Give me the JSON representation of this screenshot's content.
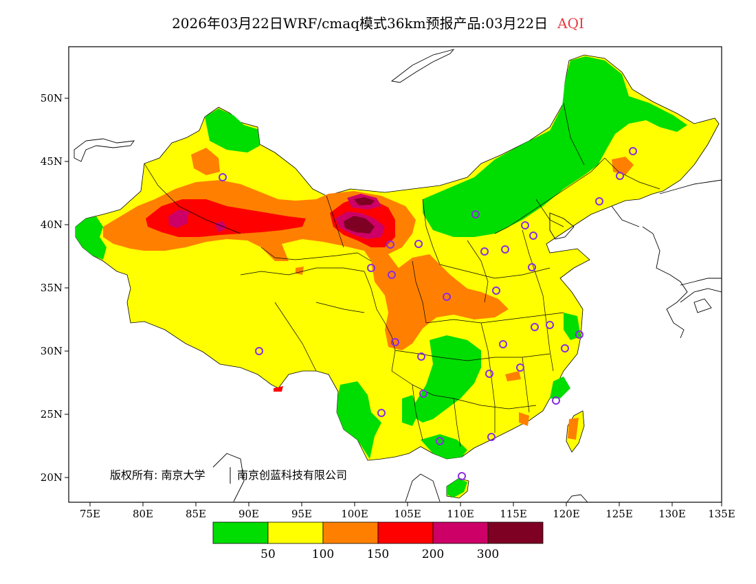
{
  "title": {
    "main": "2026年03月22日WRF/cmaq模式36km预报产品:03月22日",
    "variable": "AQI"
  },
  "axes": {
    "lon_labels": [
      "75E",
      "80E",
      "85E",
      "90E",
      "95E",
      "100E",
      "105E",
      "110E",
      "115E",
      "120E",
      "125E",
      "130E",
      "135E"
    ],
    "lat_labels": [
      "50N",
      "45N",
      "40N",
      "35N",
      "30N",
      "25N",
      "20N"
    ]
  },
  "colorbar": {
    "colors": [
      "#00dd00",
      "#ffff00",
      "#ff8000",
      "#ff0000",
      "#cc0066",
      "#7e0023"
    ],
    "labels": [
      "50",
      "100",
      "150",
      "200",
      "300"
    ]
  },
  "copyright": {
    "text": "版权所有: 南京大学",
    "org": "南京创蓝科技有限公司"
  },
  "colors": {
    "good": "#00dd00",
    "moderate": "#ffff00",
    "usg": "#ff8000",
    "unhealthy": "#ff0000",
    "very_unhealthy": "#cc0066",
    "hazardous": "#7e0023",
    "city_marker": "#8a2be2"
  }
}
